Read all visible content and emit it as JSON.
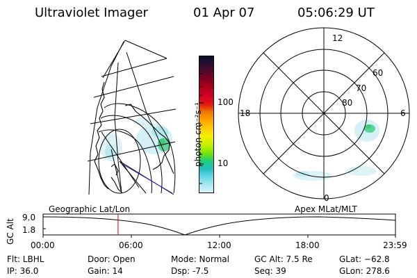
{
  "header": {
    "instrument": "Ultraviolet Imager",
    "date": "01 Apr 07",
    "time": "05:06:29 UT"
  },
  "colorbar": {
    "unit_label": "photon cm⁻²s⁻¹",
    "tick_labels": [
      "100",
      "10"
    ],
    "colors": [
      "#0b0b30",
      "#2a1030",
      "#5a0828",
      "#8a0020",
      "#b5001a",
      "#d5002a",
      "#e01a10",
      "#f07a00",
      "#ffa500",
      "#ffcc00",
      "#f5f000",
      "#c8f000",
      "#80e600",
      "#20d070",
      "#20c0c0",
      "#60d8e8",
      "#a8e8f0",
      "#d8f4f8"
    ]
  },
  "left_map": {
    "projection": "Geographic Lat/Lon"
  },
  "polar_plot": {
    "lat_labels": [
      "80",
      "70",
      "60"
    ],
    "mlt_labels": [
      "12",
      "18",
      "6",
      "0"
    ]
  },
  "timeline": {
    "left_label": "Geographic Lat/Lon",
    "right_label": "Apex MLat/MLT",
    "y_axis_title": "GC Alt",
    "y_ticks": [
      "9.0",
      "1.8"
    ],
    "x_ticks": [
      "00:00",
      "06:00",
      "12:00",
      "18:00",
      "23:59"
    ],
    "current_time_hours": 5.108
  },
  "info": {
    "filter": "Flt: LBHL",
    "ip": "IP: 36.0",
    "door": "Door: Open",
    "gain": "Gain: 14",
    "mode": "Mode: Normal",
    "dsp": "Dsp:   -7.5",
    "gc_alt": "GC Alt: 7.5 Re",
    "seq": "Seq: 39",
    "glat": "GLat: −62.8",
    "glon": "GLon: 278.6"
  }
}
